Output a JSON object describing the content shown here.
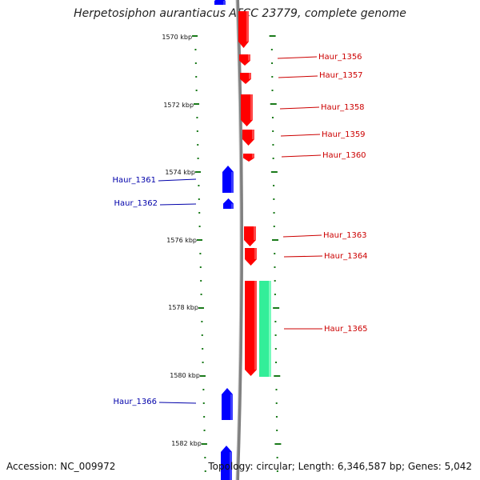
{
  "title": "Herpetosiphon aurantiacus ATCC 23779, complete genome",
  "footer": {
    "accession": "Accession: NC_009972",
    "topology": "Topology: circular; Length: 6,346,587 bp; Genes: 5,042"
  },
  "colors": {
    "forward": "#ff0000",
    "reverse": "#0000ff",
    "rna": "#33ee99",
    "tick": "#1a7a1a",
    "backbone": "#808080"
  },
  "position_labels": [
    "1570 kbp",
    "1572 kbp",
    "1574 kbp",
    "1576 kbp",
    "1578 kbp",
    "1580 kbp",
    "1582 kbp"
  ],
  "genes": [
    {
      "label": "Haur_1356",
      "strand": "forward"
    },
    {
      "label": "Haur_1357",
      "strand": "forward"
    },
    {
      "label": "Haur_1358",
      "strand": "forward"
    },
    {
      "label": "Haur_1359",
      "strand": "forward"
    },
    {
      "label": "Haur_1360",
      "strand": "forward"
    },
    {
      "label": "Haur_1361",
      "strand": "reverse"
    },
    {
      "label": "Haur_1362",
      "strand": "reverse"
    },
    {
      "label": "Haur_1363",
      "strand": "forward"
    },
    {
      "label": "Haur_1364",
      "strand": "forward"
    },
    {
      "label": "Haur_1365",
      "strand": "forward"
    },
    {
      "label": "Haur_1366",
      "strand": "reverse"
    }
  ]
}
